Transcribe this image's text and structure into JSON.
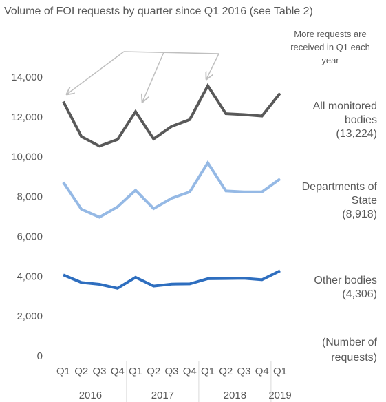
{
  "chart_data": {
    "type": "line",
    "title": "Volume of FOI requests by quarter since Q1 2016 (see Table 2)",
    "annotation": "More requests are received in Q1 each year",
    "y_label": "(Number of requests)",
    "categories": [
      "Q1",
      "Q2",
      "Q3",
      "Q4",
      "Q1",
      "Q2",
      "Q3",
      "Q4",
      "Q1",
      "Q2",
      "Q3",
      "Q4",
      "Q1"
    ],
    "year_groups": [
      {
        "label": "2016",
        "count": 4
      },
      {
        "label": "2017",
        "count": 4
      },
      {
        "label": "2018",
        "count": 4
      },
      {
        "label": "2019",
        "count": 1
      }
    ],
    "ylim": [
      0,
      14000
    ],
    "yticks": [
      0,
      {
        "value": 2000,
        "label": "2,000"
      },
      {
        "value": 4000,
        "label": "4,000"
      },
      {
        "value": 6000,
        "label": "6,000"
      },
      {
        "value": 8000,
        "label": "8,000"
      },
      {
        "value": 10000,
        "label": "10,000"
      },
      {
        "value": 12000,
        "label": "12,000"
      },
      {
        "value": 14000,
        "label": "14,000"
      }
    ],
    "series": [
      {
        "name": "All monitored bodies",
        "color": "#595959",
        "values": [
          12800,
          11050,
          10570,
          10900,
          12300,
          10930,
          11560,
          11900,
          13600,
          12200,
          12150,
          12080,
          13224
        ],
        "value_labels": [
          null,
          null,
          null,
          null,
          null,
          null,
          null,
          null,
          null,
          null,
          null,
          null,
          "(13,224)"
        ]
      },
      {
        "name": "Departments of State",
        "color": "#95b9e5",
        "values": [
          8750,
          7400,
          7000,
          7520,
          8350,
          7430,
          7950,
          8270,
          9730,
          8320,
          8270,
          8270,
          8918
        ],
        "value_labels": [
          null,
          null,
          null,
          null,
          null,
          null,
          null,
          null,
          null,
          null,
          null,
          null,
          "(8,918)"
        ]
      },
      {
        "name": "Other bodies",
        "color": "#2e6ebf",
        "values": [
          4100,
          3720,
          3630,
          3430,
          3980,
          3540,
          3640,
          3650,
          3910,
          3920,
          3930,
          3860,
          4306
        ],
        "value_labels": [
          null,
          null,
          null,
          null,
          null,
          null,
          null,
          null,
          null,
          null,
          null,
          null,
          "(4,306)"
        ]
      }
    ]
  }
}
